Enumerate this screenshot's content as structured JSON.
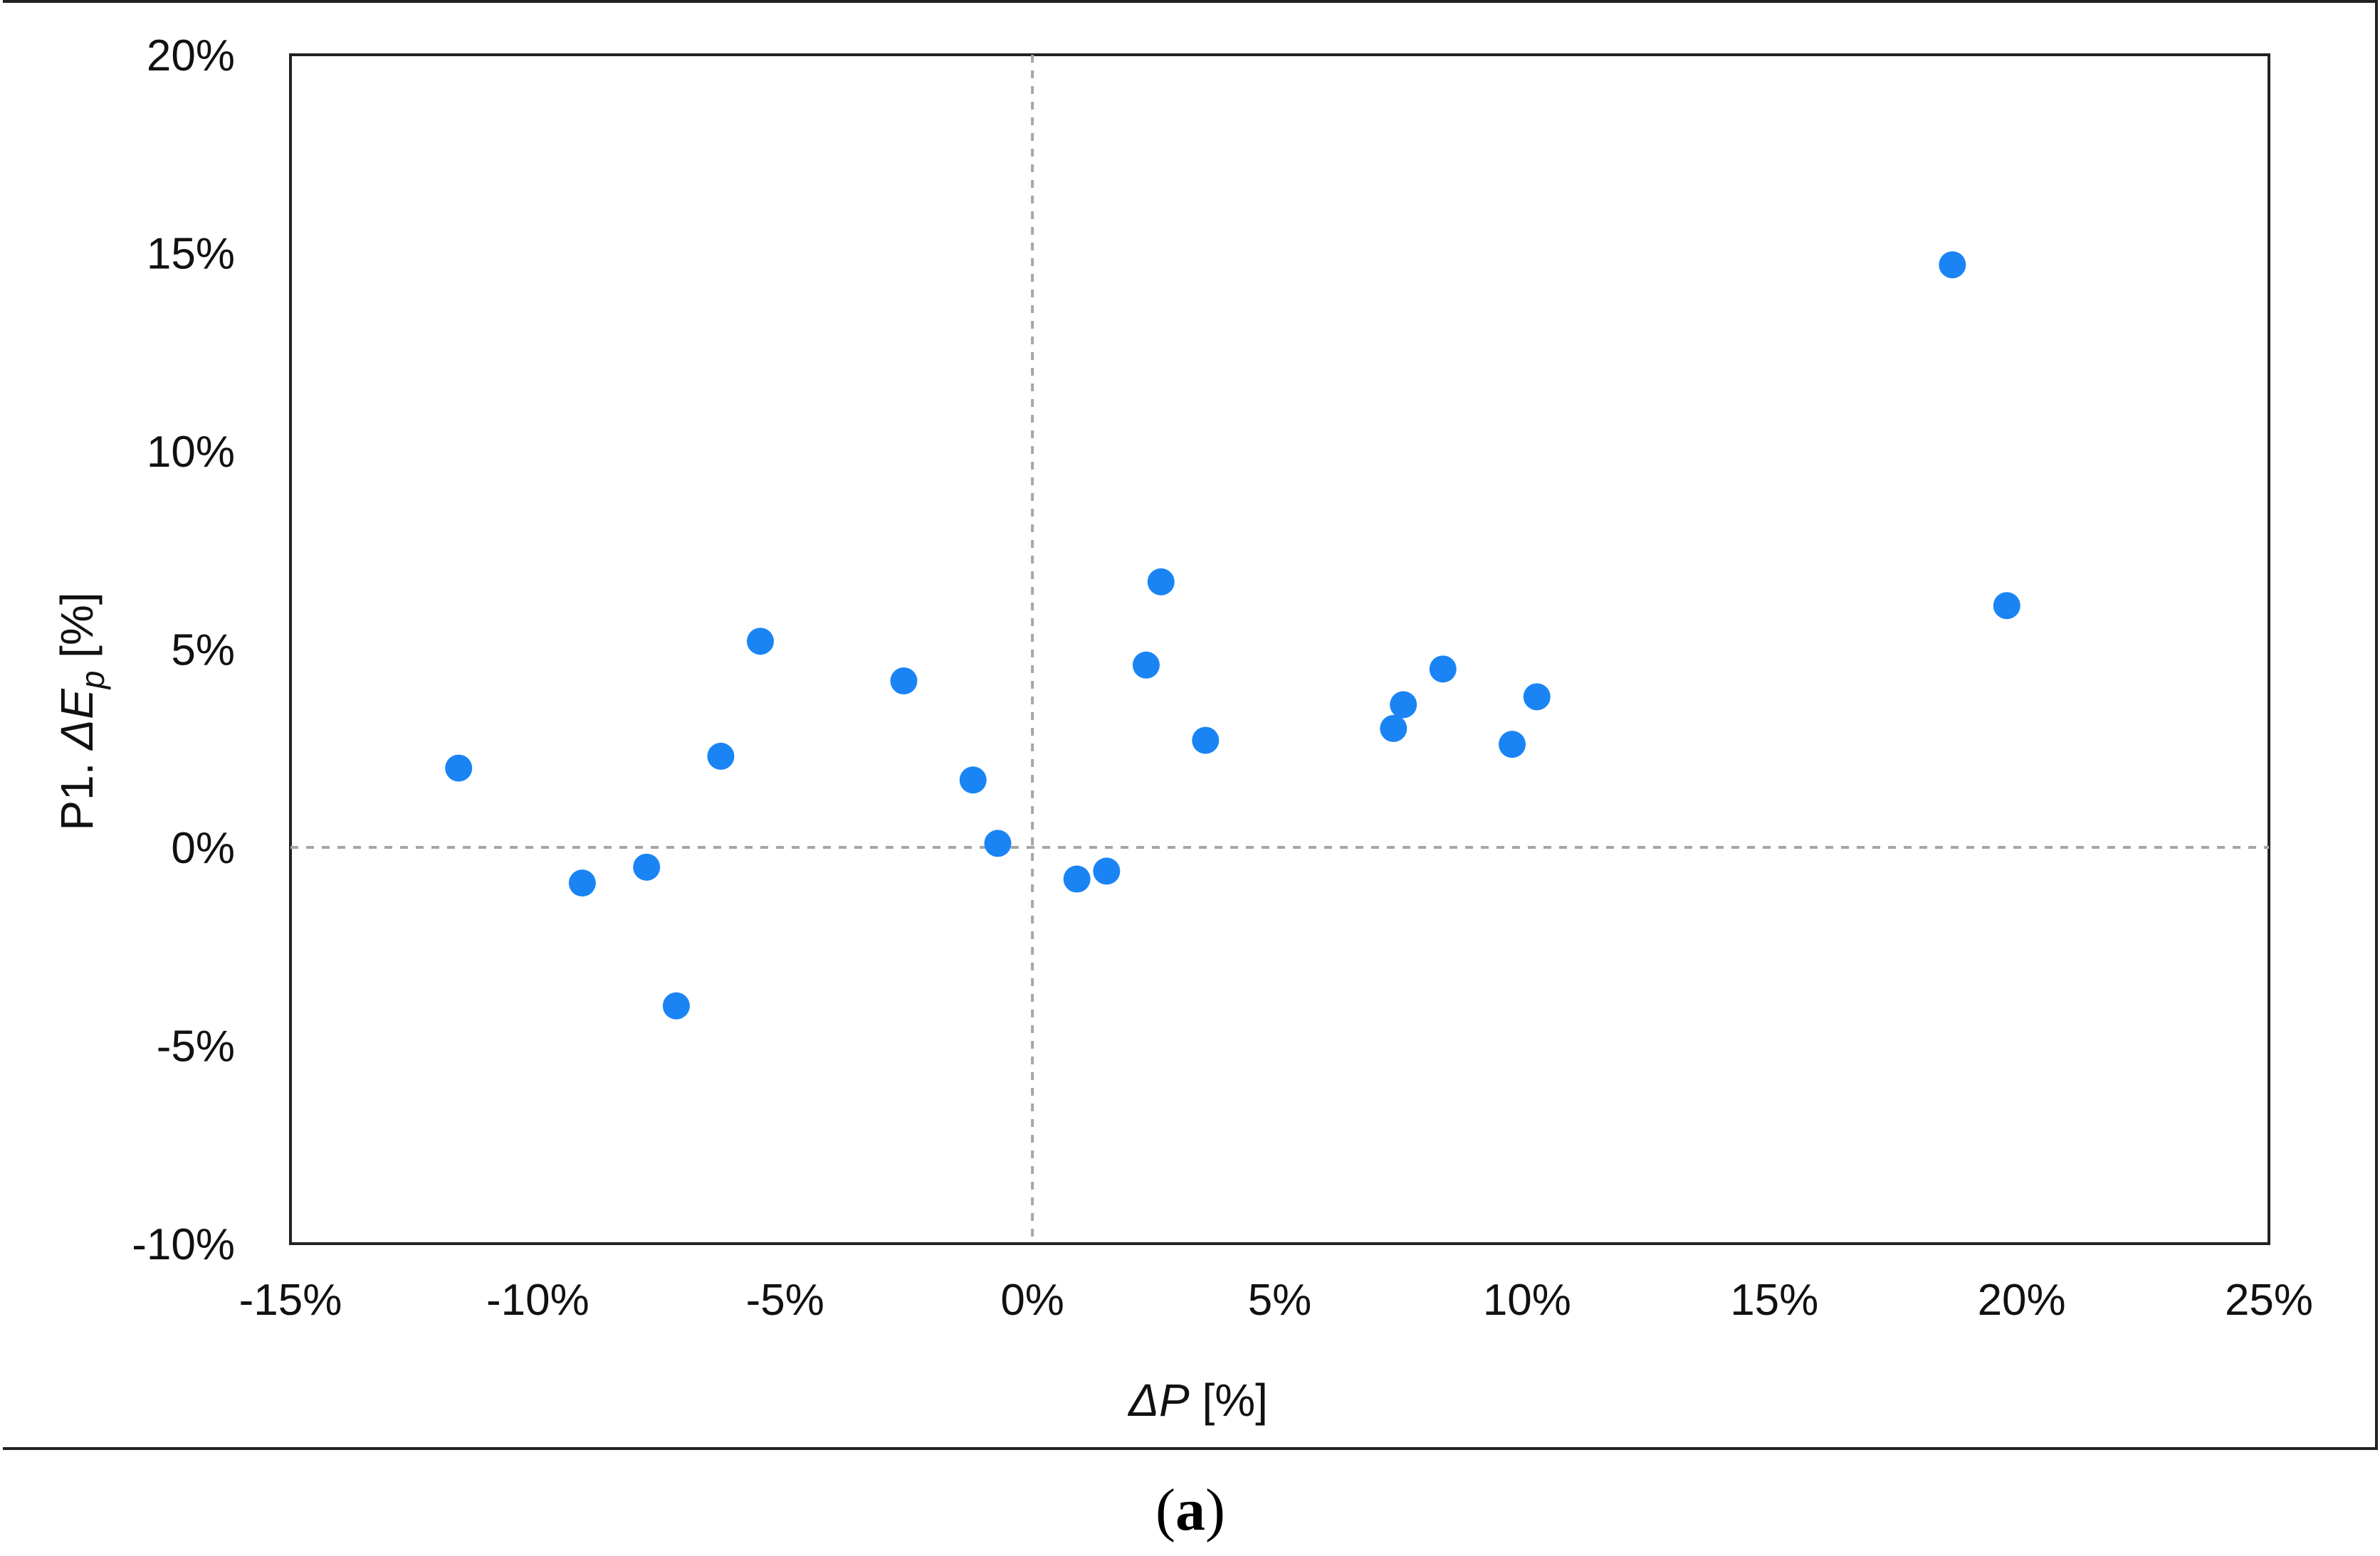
{
  "chart_data": {
    "type": "scatter",
    "title": "",
    "xlabel": "ΔP [%]",
    "ylabel": "P1. ΔE_p [%]",
    "xlabel_parts": {
      "symbol": "ΔP",
      "unit": " [%]"
    },
    "ylabel_parts": {
      "prefix": "P1. ",
      "symbol": "ΔE",
      "subscript": "p",
      "unit": " [%]"
    },
    "xlim": [
      -15,
      25
    ],
    "ylim": [
      -10,
      20
    ],
    "x_ticks": [
      -15,
      -10,
      -5,
      0,
      5,
      10,
      15,
      20,
      25
    ],
    "x_tick_labels": [
      "-15%",
      "-10%",
      "-5%",
      "0%",
      "5%",
      "10%",
      "15%",
      "20%",
      "25%"
    ],
    "y_ticks": [
      -10,
      -5,
      0,
      5,
      10,
      15,
      20
    ],
    "y_tick_labels": [
      "-10%",
      "-5%",
      "0%",
      "5%",
      "10%",
      "15%",
      "20%"
    ],
    "grid": false,
    "reference_lines": {
      "x": 0,
      "y": 0,
      "style": "dashed"
    },
    "series": [
      {
        "color": "#1a84f4",
        "points": [
          {
            "x": -11.6,
            "y": 2.0
          },
          {
            "x": -9.1,
            "y": -0.9
          },
          {
            "x": -7.8,
            "y": -0.5
          },
          {
            "x": -7.2,
            "y": -4.0
          },
          {
            "x": -6.3,
            "y": 2.3
          },
          {
            "x": -5.5,
            "y": 5.2
          },
          {
            "x": -2.6,
            "y": 4.2
          },
          {
            "x": -1.2,
            "y": 1.7
          },
          {
            "x": -0.7,
            "y": 0.1
          },
          {
            "x": 0.9,
            "y": -0.8
          },
          {
            "x": 1.5,
            "y": -0.6
          },
          {
            "x": 2.3,
            "y": 4.6
          },
          {
            "x": 2.6,
            "y": 6.7
          },
          {
            "x": 3.5,
            "y": 2.7
          },
          {
            "x": 7.3,
            "y": 3.0
          },
          {
            "x": 7.5,
            "y": 3.6
          },
          {
            "x": 8.3,
            "y": 4.5
          },
          {
            "x": 9.7,
            "y": 2.6
          },
          {
            "x": 10.2,
            "y": 3.8
          },
          {
            "x": 18.6,
            "y": 14.7
          },
          {
            "x": 19.7,
            "y": 6.1
          }
        ]
      }
    ]
  },
  "caption": {
    "open": "(",
    "letter": "a",
    "close": ")"
  }
}
